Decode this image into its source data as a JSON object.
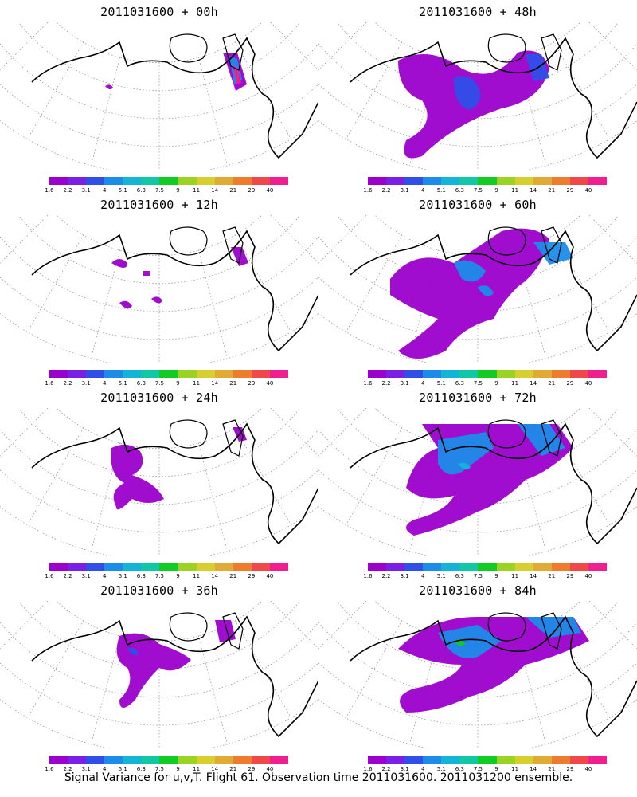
{
  "panels": [
    {
      "title": "2011031600 + 00h"
    },
    {
      "title": "2011031600 + 48h"
    },
    {
      "title": "2011031600 + 12h"
    },
    {
      "title": "2011031600 + 60h"
    },
    {
      "title": "2011031600 + 24h"
    },
    {
      "title": "2011031600 + 72h"
    },
    {
      "title": "2011031600 + 36h"
    },
    {
      "title": "2011031600 + 84h"
    }
  ],
  "legend": {
    "ticks": [
      "1.6",
      "2.2",
      "3.1",
      "4",
      "5.1",
      "6.3",
      "7.5",
      "9",
      "11",
      "14",
      "21",
      "29",
      "40"
    ],
    "colors": [
      "#9b00cc",
      "#7a1fe6",
      "#2f4fe8",
      "#1b8ce8",
      "#14b4d8",
      "#10c8a6",
      "#13cc23",
      "#9bd322",
      "#d6cf2e",
      "#e1aa35",
      "#ee7c2d",
      "#f04848",
      "#f01e8e"
    ]
  },
  "caption": "Signal Variance for u,v,T. Flight 61. Observation time 2011031600. 2011031200 ensemble."
}
